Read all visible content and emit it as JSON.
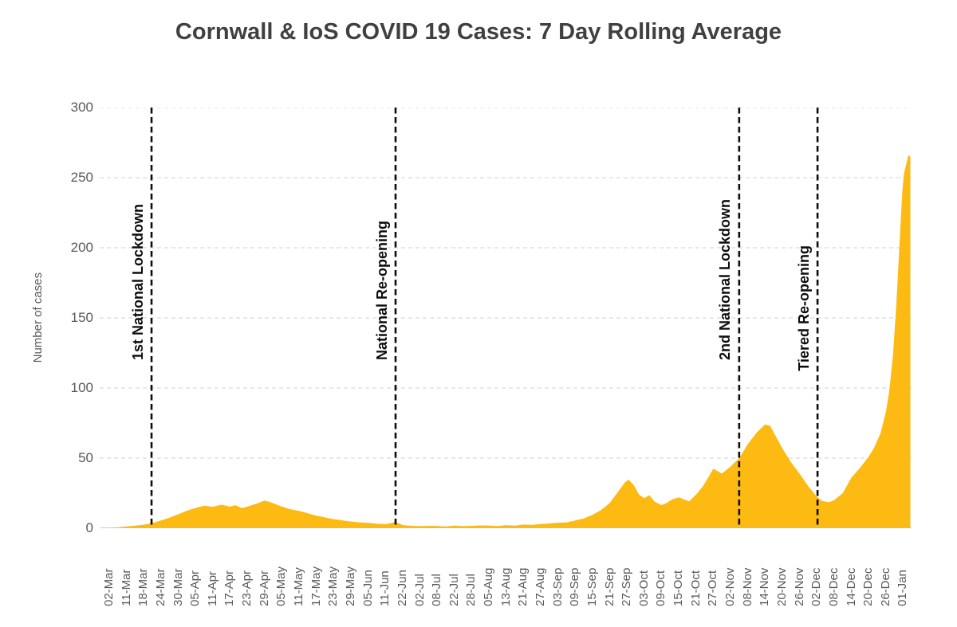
{
  "title": "Cornwall & IoS COVID 19 Cases: 7 Day Rolling Average",
  "chart_data": {
    "type": "area",
    "title": "Cornwall & IoS COVID 19 Cases: 7 Day Rolling Average",
    "xlabel": "",
    "ylabel": "Number of cases",
    "ylim": [
      0,
      300
    ],
    "yticks": [
      0,
      50,
      100,
      150,
      200,
      250,
      300
    ],
    "grid": "dashed horizontal gridlines, no legend",
    "x_labels": [
      "02-Mar",
      "11-Mar",
      "18-Mar",
      "24-Mar",
      "30-Mar",
      "05-Apr",
      "11-Apr",
      "17-Apr",
      "23-Apr",
      "29-Apr",
      "05-May",
      "11-May",
      "17-May",
      "23-May",
      "29-May",
      "05-Jun",
      "11-Jun",
      "22-Jun",
      "02-Jul",
      "08-Jul",
      "22-Jul",
      "28-Jul",
      "05-Aug",
      "13-Aug",
      "21-Aug",
      "27-Aug",
      "03-Sep",
      "09-Sep",
      "15-Sep",
      "21-Sep",
      "27-Sep",
      "03-Oct",
      "09-Oct",
      "15-Oct",
      "21-Oct",
      "27-Oct",
      "02-Nov",
      "08-Nov",
      "14-Nov",
      "20-Nov",
      "26-Nov",
      "02-Dec",
      "08-Dec",
      "14-Dec",
      "20-Dec",
      "26-Dec",
      "01-Jan"
    ],
    "series": [
      {
        "name": "7 day rolling average of cases",
        "note": "points are [x,y] where x is in x-label index units (0 = 02-Mar, 46 = 01-Jan), y = number of cases",
        "points": [
          [
            -0.45,
            0.2
          ],
          [
            0,
            0.3
          ],
          [
            0.5,
            0.6
          ],
          [
            1,
            1.2
          ],
          [
            1.5,
            1.8
          ],
          [
            2,
            2.5
          ],
          [
            2.45,
            3.6
          ],
          [
            3,
            5.5
          ],
          [
            3.5,
            7.5
          ],
          [
            4,
            10
          ],
          [
            4.5,
            12.5
          ],
          [
            5,
            14.5
          ],
          [
            5.5,
            16
          ],
          [
            6,
            15.3
          ],
          [
            6.5,
            16.8
          ],
          [
            7,
            15.4
          ],
          [
            7.3,
            16.4
          ],
          [
            7.7,
            14.4
          ],
          [
            8,
            15.4
          ],
          [
            8.5,
            17.4
          ],
          [
            9,
            19.8
          ],
          [
            9.4,
            18.3
          ],
          [
            10,
            15.4
          ],
          [
            10.5,
            13.6
          ],
          [
            11,
            12.4
          ],
          [
            11.5,
            10.7
          ],
          [
            12,
            9
          ],
          [
            12.5,
            7.7
          ],
          [
            13,
            6.5
          ],
          [
            13.5,
            5.6
          ],
          [
            14,
            4.8
          ],
          [
            14.5,
            4.2
          ],
          [
            15,
            3.8
          ],
          [
            15.5,
            3.2
          ],
          [
            16,
            2.9
          ],
          [
            16.3,
            3.6
          ],
          [
            16.55,
            4.4
          ],
          [
            16.8,
            3.4
          ],
          [
            17,
            2.2
          ],
          [
            17.5,
            1.7
          ],
          [
            18,
            1.5
          ],
          [
            18.5,
            1.7
          ],
          [
            19,
            1.6
          ],
          [
            19.5,
            1.3
          ],
          [
            20,
            1.8
          ],
          [
            20.5,
            1.5
          ],
          [
            21,
            1.7
          ],
          [
            21.5,
            2
          ],
          [
            22,
            1.9
          ],
          [
            22.5,
            1.6
          ],
          [
            23,
            2.2
          ],
          [
            23.5,
            1.9
          ],
          [
            24,
            2.6
          ],
          [
            24.5,
            2.4
          ],
          [
            25,
            3
          ],
          [
            25.5,
            3.4
          ],
          [
            26,
            3.9
          ],
          [
            26.5,
            4.1
          ],
          [
            27,
            5.5
          ],
          [
            27.5,
            7
          ],
          [
            28,
            9.5
          ],
          [
            28.5,
            13
          ],
          [
            29,
            18
          ],
          [
            29.3,
            23
          ],
          [
            29.6,
            28
          ],
          [
            29.9,
            33
          ],
          [
            30.1,
            34.6
          ],
          [
            30.4,
            30.5
          ],
          [
            30.7,
            24
          ],
          [
            31,
            21.5
          ],
          [
            31.3,
            23.5
          ],
          [
            31.6,
            19
          ],
          [
            32,
            16.5
          ],
          [
            32.3,
            18
          ],
          [
            32.6,
            20.5
          ],
          [
            33,
            22
          ],
          [
            33.3,
            20.5
          ],
          [
            33.6,
            19.2
          ],
          [
            34,
            24
          ],
          [
            34.4,
            30
          ],
          [
            34.7,
            36
          ],
          [
            35,
            42.5
          ],
          [
            35.2,
            41
          ],
          [
            35.5,
            39
          ],
          [
            36,
            44
          ],
          [
            36.5,
            50
          ],
          [
            37,
            60
          ],
          [
            37.5,
            68
          ],
          [
            38,
            74
          ],
          [
            38.3,
            73
          ],
          [
            38.6,
            66
          ],
          [
            39,
            57
          ],
          [
            39.5,
            47
          ],
          [
            40,
            39
          ],
          [
            40.5,
            30
          ],
          [
            41,
            22.5
          ],
          [
            41.3,
            19.5
          ],
          [
            41.7,
            18.5
          ],
          [
            42,
            20
          ],
          [
            42.5,
            25
          ],
          [
            43,
            36
          ],
          [
            43.5,
            43
          ],
          [
            44,
            51
          ],
          [
            44.3,
            57
          ],
          [
            44.7,
            68
          ],
          [
            45,
            83
          ],
          [
            45.2,
            98
          ],
          [
            45.4,
            122
          ],
          [
            45.6,
            158
          ],
          [
            45.8,
            205
          ],
          [
            45.95,
            240
          ],
          [
            46.05,
            253
          ],
          [
            46.15,
            258
          ],
          [
            46.3,
            266
          ],
          [
            46.42,
            265
          ]
        ]
      }
    ],
    "events": [
      {
        "label": "1st National Lockdown",
        "x": 2.45
      },
      {
        "label": "National Re-opening",
        "x": 16.59
      },
      {
        "label": "2nd National Lockdown",
        "x": 36.5
      },
      {
        "label": "Tiered Re-opening",
        "x": 41.04
      }
    ],
    "colors": {
      "area": "#FDBA12",
      "event_line": "#0d0d0d",
      "gridline": "#D9D9D9",
      "baseline": "#BFBFBF",
      "axis_text": "#595959",
      "title_text": "#404040"
    },
    "legend_position": "none"
  }
}
